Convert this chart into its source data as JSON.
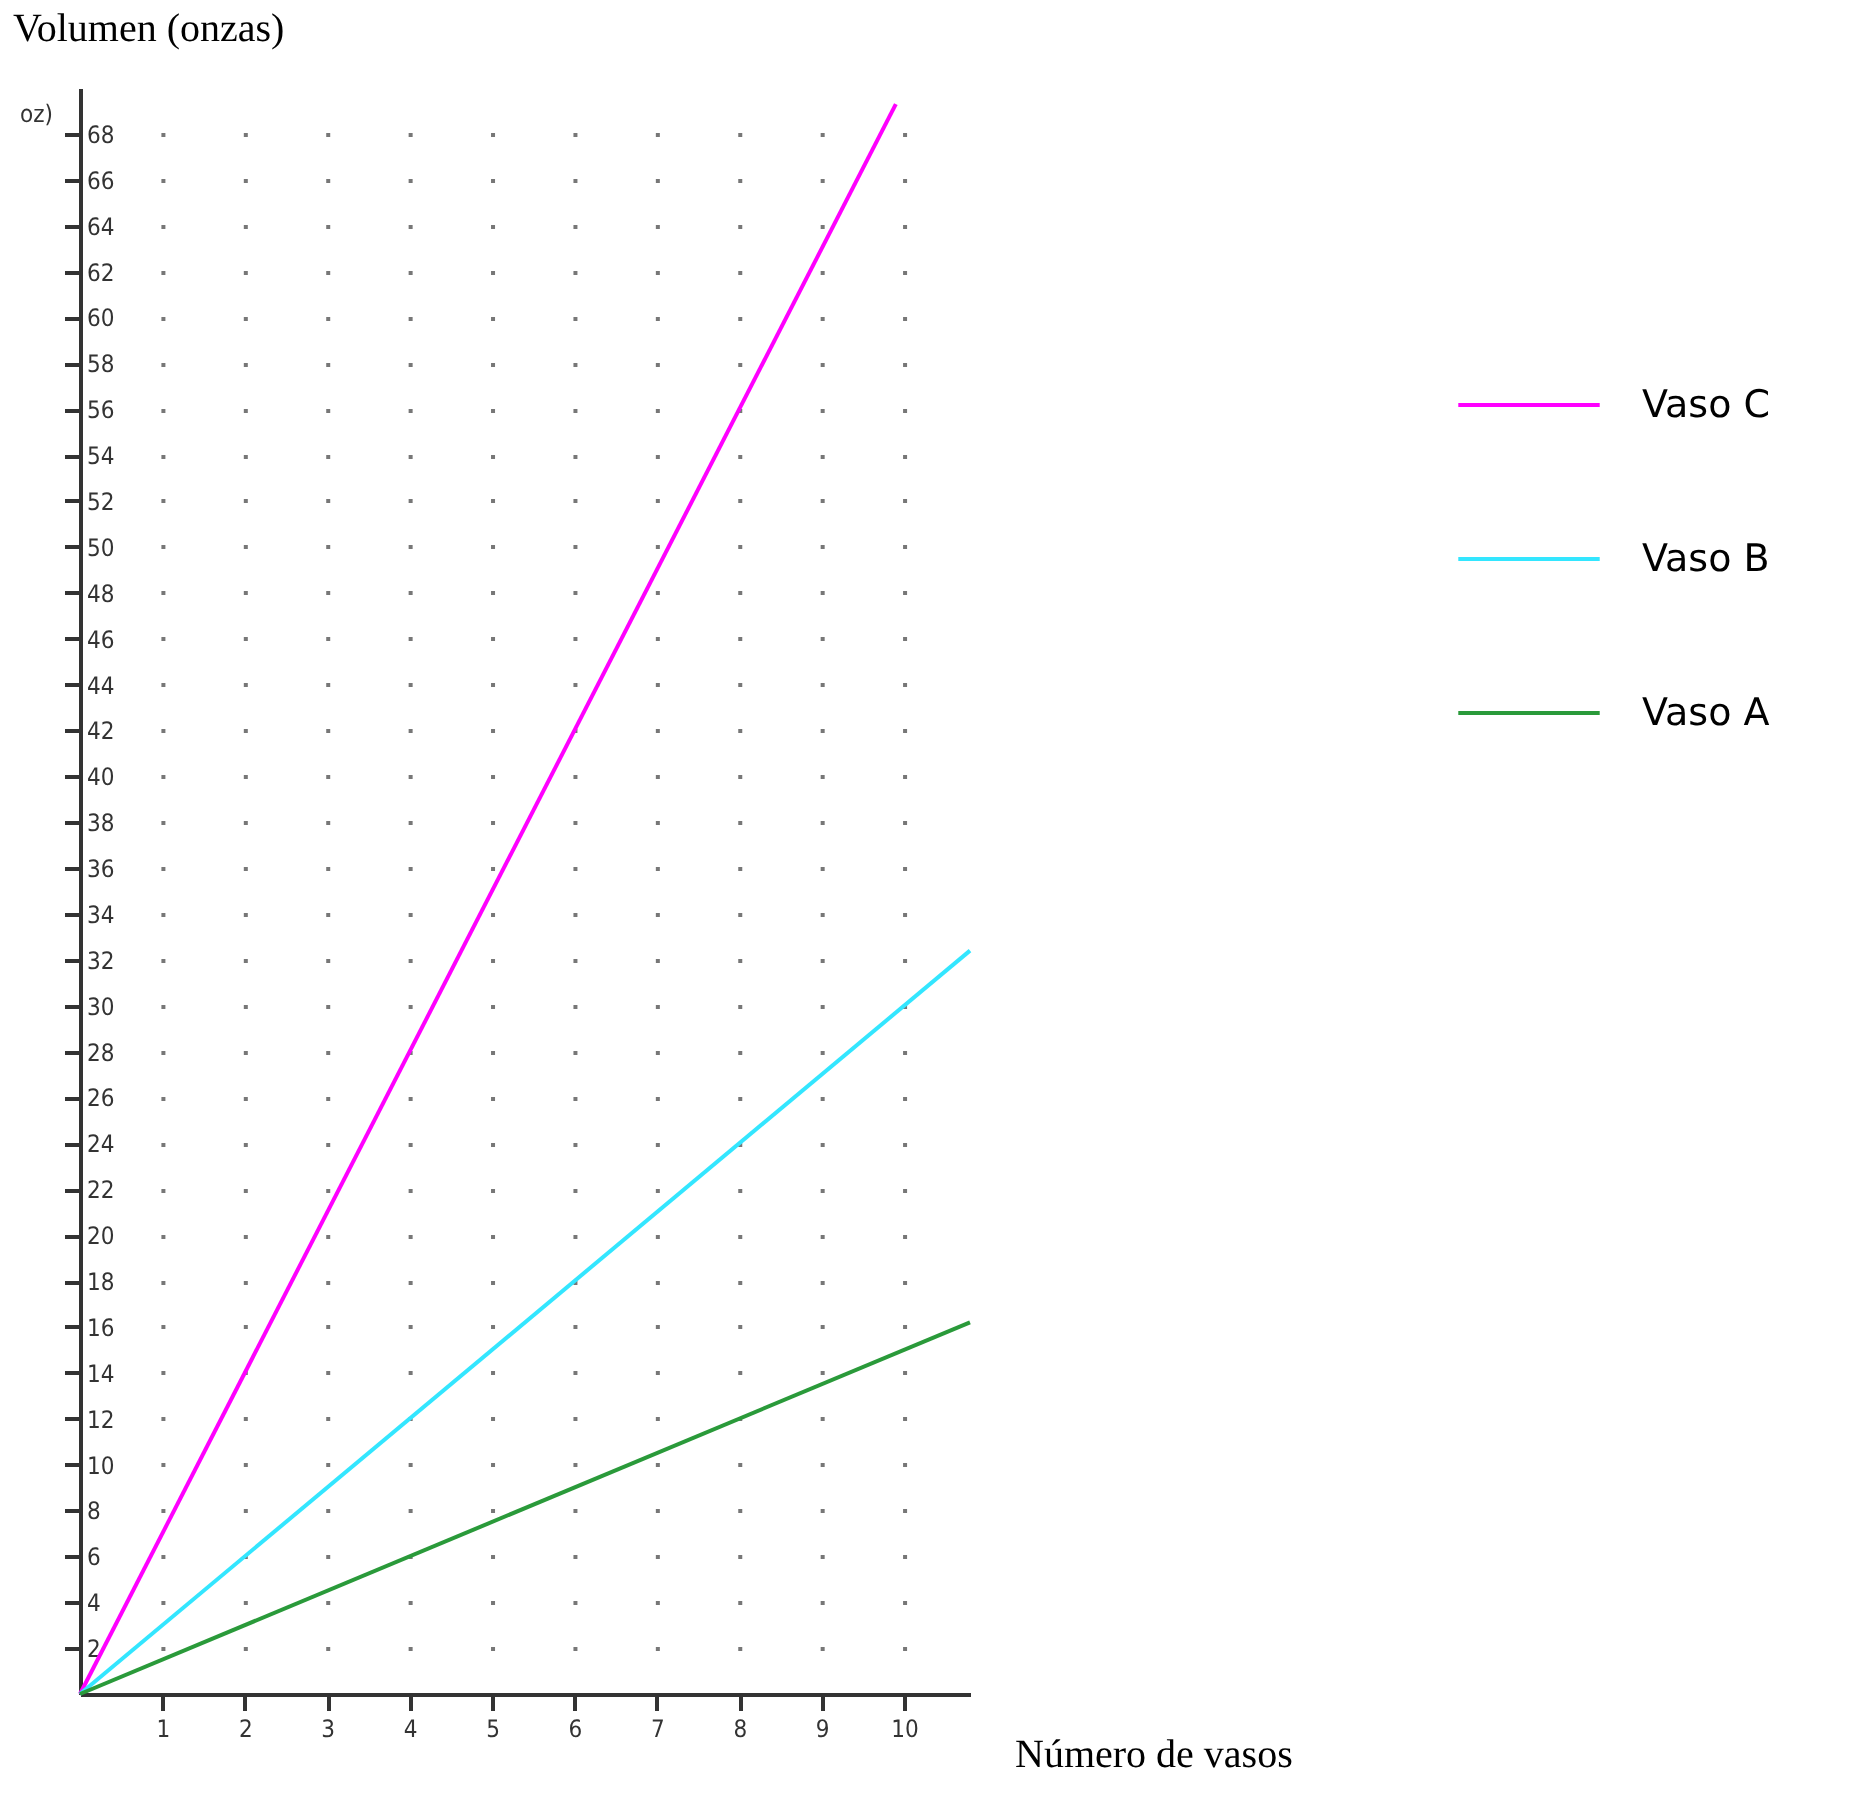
{
  "chart_data": {
    "type": "line",
    "ylabel": "Volumen (onzas)",
    "xlabel": "Número de vasos",
    "annotations": [
      "oz)"
    ],
    "series": [
      {
        "name": "Vaso C",
        "color": "#ff00ff",
        "x": [
          0,
          9.9
        ],
        "values": [
          0,
          69.3
        ]
      },
      {
        "name": "Vaso B",
        "color": "#33e6ff",
        "x": [
          0,
          10.8
        ],
        "values": [
          0,
          32.4
        ]
      },
      {
        "name": "Vaso A",
        "color": "#2a9a3a",
        "x": [
          0,
          10.8
        ],
        "values": [
          0,
          16.2
        ]
      }
    ],
    "xlim": [
      0,
      10.8
    ],
    "ylim": [
      0,
      70
    ],
    "xticks": [
      1,
      2,
      3,
      4,
      5,
      6,
      7,
      8,
      9,
      10
    ],
    "yticks": [
      2,
      4,
      6,
      8,
      10,
      12,
      14,
      16,
      18,
      20,
      22,
      24,
      26,
      28,
      30,
      32,
      34,
      36,
      38,
      40,
      42,
      44,
      46,
      48,
      50,
      52,
      54,
      56,
      58,
      60,
      62,
      64,
      66,
      68
    ],
    "grid": "y",
    "legend": "right",
    "marker": "none",
    "line_style": "solid"
  }
}
